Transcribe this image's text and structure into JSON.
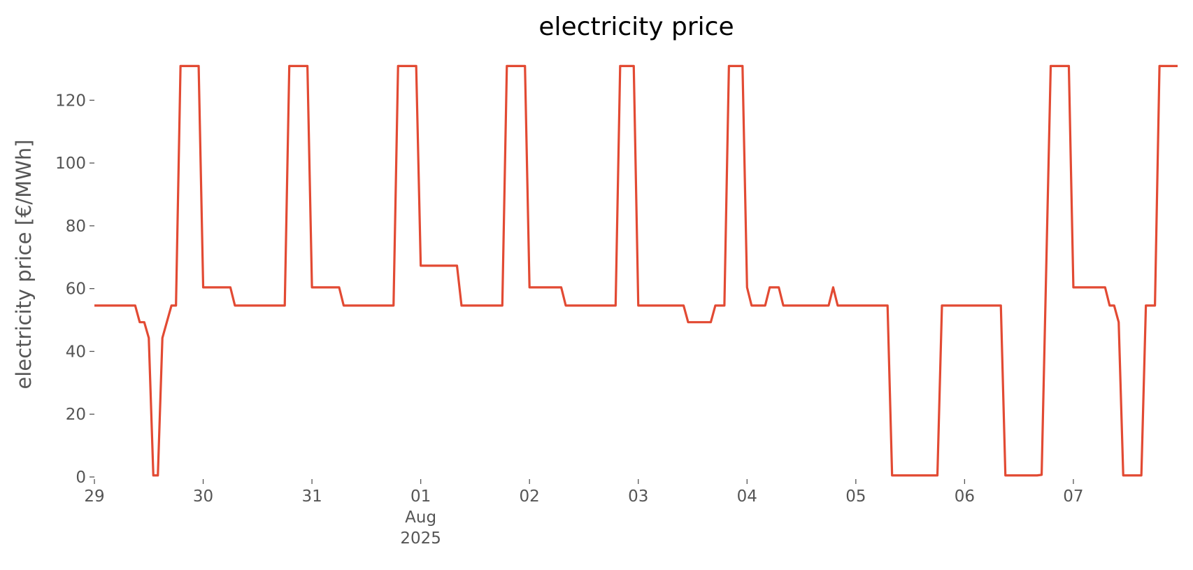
{
  "chart_data": {
    "type": "line",
    "title": "electricity price",
    "ylabel": "electricity price [€/MWh]",
    "x": [
      "2025-07-29T00:00",
      "2025-07-29T09:00",
      "2025-07-29T10:00",
      "2025-07-29T11:00",
      "2025-07-29T12:00",
      "2025-07-29T13:00",
      "2025-07-29T14:00",
      "2025-07-29T15:00",
      "2025-07-29T17:00",
      "2025-07-29T18:00",
      "2025-07-29T19:00",
      "2025-07-29T23:00",
      "2025-07-30T00:00",
      "2025-07-30T06:00",
      "2025-07-30T07:00",
      "2025-07-30T18:00",
      "2025-07-30T19:00",
      "2025-07-30T23:00",
      "2025-07-31T00:00",
      "2025-07-31T06:00",
      "2025-07-31T07:00",
      "2025-07-31T18:00",
      "2025-07-31T19:00",
      "2025-07-31T23:00",
      "2025-08-01T00:00",
      "2025-08-01T08:00",
      "2025-08-01T09:00",
      "2025-08-01T18:00",
      "2025-08-01T19:00",
      "2025-08-01T23:00",
      "2025-08-02T00:00",
      "2025-08-02T07:00",
      "2025-08-02T08:00",
      "2025-08-02T19:00",
      "2025-08-02T20:00",
      "2025-08-02T23:00",
      "2025-08-03T00:00",
      "2025-08-03T10:00",
      "2025-08-03T11:00",
      "2025-08-03T16:00",
      "2025-08-03T17:00",
      "2025-08-03T19:00",
      "2025-08-03T20:00",
      "2025-08-03T23:00",
      "2025-08-04T00:00",
      "2025-08-04T01:00",
      "2025-08-04T04:00",
      "2025-08-04T05:00",
      "2025-08-04T07:00",
      "2025-08-04T08:00",
      "2025-08-04T18:00",
      "2025-08-04T19:00",
      "2025-08-04T20:00",
      "2025-08-05T07:00",
      "2025-08-05T08:00",
      "2025-08-05T18:00",
      "2025-08-05T19:00",
      "2025-08-06T08:00",
      "2025-08-06T09:00",
      "2025-08-06T16:00",
      "2025-08-06T17:00",
      "2025-08-06T19:00",
      "2025-08-06T23:00",
      "2025-08-07T00:00",
      "2025-08-07T07:00",
      "2025-08-07T08:00",
      "2025-08-07T09:00",
      "2025-08-07T10:00",
      "2025-08-07T11:00",
      "2025-08-07T15:00",
      "2025-08-07T16:00",
      "2025-08-07T18:00",
      "2025-08-07T19:00",
      "2025-08-07T23:00"
    ],
    "series": [
      {
        "color": "#E24A33",
        "values": [
          54.6,
          54.6,
          49.3,
          49.3,
          44.3,
          0.5,
          0.5,
          44.3,
          54.6,
          54.6,
          130.9,
          130.9,
          60.4,
          60.4,
          54.6,
          54.6,
          130.9,
          130.9,
          60.4,
          60.4,
          54.6,
          54.6,
          130.9,
          130.9,
          67.3,
          67.3,
          54.6,
          54.6,
          130.9,
          130.9,
          60.4,
          60.4,
          54.6,
          54.6,
          130.9,
          130.9,
          54.6,
          54.6,
          49.3,
          49.3,
          54.6,
          54.6,
          130.9,
          130.9,
          60.4,
          54.6,
          54.6,
          60.4,
          60.4,
          54.6,
          54.6,
          60.4,
          54.6,
          54.6,
          0.5,
          0.5,
          54.6,
          54.6,
          0.5,
          0.5,
          0.7,
          130.9,
          130.9,
          60.4,
          60.4,
          54.6,
          54.6,
          49.3,
          0.5,
          0.5,
          54.6,
          54.6,
          130.9,
          130.9
        ]
      }
    ],
    "xlim": [
      "2025-07-29T00:00",
      "2025-08-07T23:00"
    ],
    "xticks": [
      {
        "value": "2025-07-29T00:00",
        "label": "29"
      },
      {
        "value": "2025-07-30T00:00",
        "label": "30"
      },
      {
        "value": "2025-07-31T00:00",
        "label": "31"
      },
      {
        "value": "2025-08-01T00:00",
        "label": "01\nAug\n2025"
      },
      {
        "value": "2025-08-02T00:00",
        "label": "02"
      },
      {
        "value": "2025-08-03T00:00",
        "label": "03"
      },
      {
        "value": "2025-08-04T00:00",
        "label": "04"
      },
      {
        "value": "2025-08-05T00:00",
        "label": "05"
      },
      {
        "value": "2025-08-06T00:00",
        "label": "06"
      },
      {
        "value": "2025-08-07T00:00",
        "label": "07"
      }
    ],
    "ylim": [
      0,
      137
    ],
    "yticks": [
      0,
      20,
      40,
      60,
      80,
      100,
      120
    ]
  }
}
